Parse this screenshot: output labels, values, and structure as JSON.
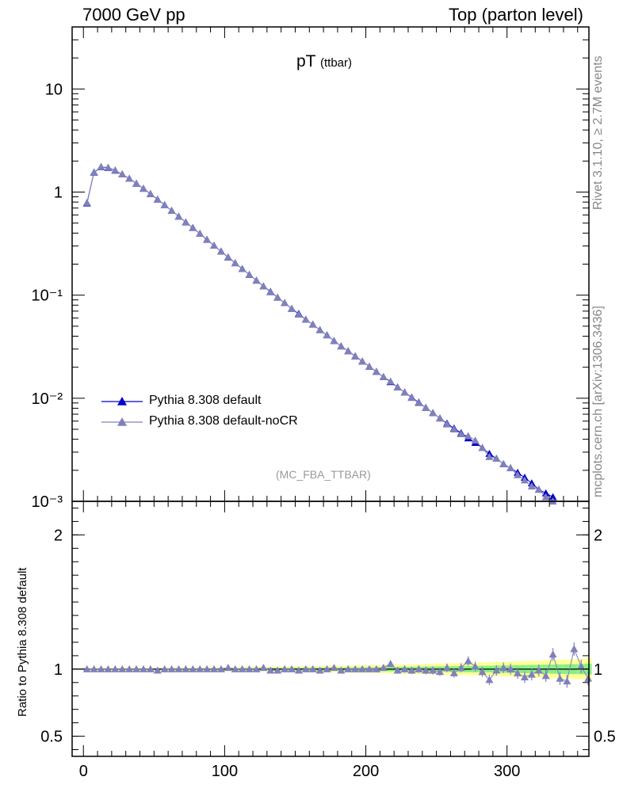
{
  "header": {
    "left": "7000 GeV pp",
    "right": "Top (parton level)"
  },
  "side": {
    "rivet": "Rivet 3.1.10, ≥ 2.7M events",
    "mcplots": "mcplots.cern.ch [arXiv:1306.3436]"
  },
  "title": {
    "main": "pT",
    "sub": "(ttbar)"
  },
  "analysis": "(MC_FBA_TTBAR)",
  "ratio_ylabel": "Ratio to Pythia 8.308 default",
  "legend": [
    {
      "label": "Pythia 8.308 default",
      "color": "#0000cc"
    },
    {
      "label": "Pythia 8.308 default-noCR",
      "color": "#8080bb"
    }
  ],
  "chart_data": {
    "type": "line",
    "x_ticks": [
      "0",
      "100",
      "200",
      "300"
    ],
    "xlim": [
      -8,
      358
    ],
    "main": {
      "yscale": "log",
      "ylim": [
        0.001,
        40
      ],
      "y_ticks": [
        "10",
        "1",
        "10⁻¹",
        "10⁻²",
        "10⁻³"
      ],
      "x": [
        2.5,
        7.5,
        12.5,
        17.5,
        22.5,
        27.5,
        32.5,
        37.5,
        42.5,
        47.5,
        52.5,
        57.5,
        62.5,
        67.5,
        72.5,
        77.5,
        82.5,
        87.5,
        92.5,
        97.5,
        102.5,
        107.5,
        112.5,
        117.5,
        122.5,
        127.5,
        132.5,
        137.5,
        142.5,
        147.5,
        152.5,
        157.5,
        162.5,
        167.5,
        172.5,
        177.5,
        182.5,
        187.5,
        192.5,
        197.5,
        202.5,
        207.5,
        212.5,
        217.5,
        222.5,
        227.5,
        232.5,
        237.5,
        242.5,
        247.5,
        252.5,
        257.5,
        262.5,
        267.5,
        272.5,
        277.5,
        282.5,
        287.5,
        292.5,
        297.5,
        302.5,
        307.5,
        312.5,
        317.5,
        322.5,
        327.5,
        332.5,
        337.5,
        342.5,
        347.5,
        352.5,
        357.5
      ],
      "series": [
        {
          "name": "Pythia 8.308 default",
          "values": [
            0.78,
            1.55,
            1.75,
            1.72,
            1.62,
            1.49,
            1.35,
            1.21,
            1.08,
            0.96,
            0.85,
            0.75,
            0.66,
            0.58,
            0.51,
            0.45,
            0.395,
            0.345,
            0.303,
            0.266,
            0.233,
            0.205,
            0.18,
            0.158,
            0.139,
            0.122,
            0.108,
            0.095,
            0.084,
            0.074,
            0.066,
            0.058,
            0.052,
            0.046,
            0.041,
            0.036,
            0.032,
            0.0287,
            0.0256,
            0.0228,
            0.0203,
            0.0181,
            0.0161,
            0.0144,
            0.0128,
            0.0114,
            0.0102,
            0.0091,
            0.0081,
            0.0072,
            0.0064,
            0.0057,
            0.0051,
            0.0046,
            0.0041,
            0.0037,
            0.0033,
            0.0029,
            0.0026,
            0.0023,
            0.0021,
            0.0019,
            0.0017,
            0.0015,
            0.0013,
            0.0012,
            0.0011,
            0.00098,
            0.00088,
            0.00079,
            0.00071,
            0.00064
          ]
        },
        {
          "name": "Pythia 8.308 default-noCR",
          "values": [
            0.79,
            1.56,
            1.76,
            1.73,
            1.63,
            1.49,
            1.35,
            1.21,
            1.08,
            0.96,
            0.85,
            0.75,
            0.66,
            0.58,
            0.51,
            0.45,
            0.395,
            0.346,
            0.303,
            0.266,
            0.234,
            0.205,
            0.18,
            0.158,
            0.139,
            0.122,
            0.107,
            0.095,
            0.084,
            0.074,
            0.065,
            0.058,
            0.052,
            0.046,
            0.041,
            0.036,
            0.032,
            0.0287,
            0.0255,
            0.0228,
            0.0203,
            0.0181,
            0.0161,
            0.0146,
            0.0128,
            0.0114,
            0.0101,
            0.009,
            0.0081,
            0.0072,
            0.0064,
            0.0056,
            0.005,
            0.0045,
            0.0043,
            0.0039,
            0.0033,
            0.0027,
            0.0026,
            0.0023,
            0.0021,
            0.0018,
            0.0016,
            0.0014,
            0.0013,
            0.0011,
            0.001,
            0.00088,
            0.00077,
            0.00079,
            0.00072,
            0.00059
          ]
        }
      ]
    },
    "ratio": {
      "ylim": [
        0.35,
        2.25
      ],
      "y_ticks": [
        "2",
        "1",
        "0.5"
      ],
      "x": [
        2.5,
        7.5,
        12.5,
        17.5,
        22.5,
        27.5,
        32.5,
        37.5,
        42.5,
        47.5,
        52.5,
        57.5,
        62.5,
        67.5,
        72.5,
        77.5,
        82.5,
        87.5,
        92.5,
        97.5,
        102.5,
        107.5,
        112.5,
        117.5,
        122.5,
        127.5,
        132.5,
        137.5,
        142.5,
        147.5,
        152.5,
        157.5,
        162.5,
        167.5,
        172.5,
        177.5,
        182.5,
        187.5,
        192.5,
        197.5,
        202.5,
        207.5,
        212.5,
        217.5,
        222.5,
        227.5,
        232.5,
        237.5,
        242.5,
        247.5,
        252.5,
        257.5,
        262.5,
        267.5,
        272.5,
        277.5,
        282.5,
        287.5,
        292.5,
        297.5,
        302.5,
        307.5,
        312.5,
        317.5,
        322.5,
        327.5,
        332.5,
        337.5,
        342.5,
        347.5,
        352.5,
        357.5
      ],
      "values": [
        1.0,
        1.0,
        1.0,
        1.0,
        1.0,
        1.0,
        1.0,
        1.0,
        1.0,
        1.0,
        0.99,
        1.0,
        1.0,
        1.0,
        1.0,
        1.0,
        1.0,
        1.0,
        1.0,
        1.0,
        1.01,
        1.0,
        1.0,
        1.0,
        1.0,
        1.01,
        0.99,
        0.99,
        1.0,
        1.0,
        0.99,
        1.0,
        1.0,
        0.99,
        1.0,
        1.01,
        0.99,
        1.0,
        1.0,
        1.0,
        1.0,
        1.0,
        1.01,
        1.04,
        0.99,
        1.0,
        0.99,
        1.0,
        0.99,
        0.99,
        0.98,
        1.01,
        0.97,
        1.01,
        1.06,
        1.02,
        0.98,
        0.92,
        0.99,
        1.01,
        1.0,
        0.97,
        0.94,
        0.96,
        0.99,
        0.95,
        1.11,
        0.93,
        0.91,
        1.15,
        1.02,
        0.93
      ],
      "errors": [
        0.005,
        0.005,
        0.005,
        0.005,
        0.005,
        0.005,
        0.005,
        0.005,
        0.005,
        0.005,
        0.006,
        0.006,
        0.006,
        0.007,
        0.007,
        0.007,
        0.008,
        0.008,
        0.008,
        0.009,
        0.009,
        0.01,
        0.01,
        0.01,
        0.011,
        0.011,
        0.012,
        0.012,
        0.013,
        0.013,
        0.014,
        0.014,
        0.015,
        0.015,
        0.016,
        0.017,
        0.017,
        0.018,
        0.019,
        0.02,
        0.021,
        0.022,
        0.023,
        0.024,
        0.025,
        0.026,
        0.027,
        0.028,
        0.029,
        0.03,
        0.031,
        0.032,
        0.033,
        0.034,
        0.035,
        0.036,
        0.037,
        0.038,
        0.039,
        0.04,
        0.041,
        0.042,
        0.043,
        0.044,
        0.045,
        0.046,
        0.047,
        0.048,
        0.049,
        0.05,
        0.051,
        0.052
      ],
      "band_green": [
        0.005,
        0.005,
        0.005,
        0.005,
        0.005,
        0.005,
        0.005,
        0.005,
        0.005,
        0.005,
        0.005,
        0.005,
        0.005,
        0.006,
        0.006,
        0.006,
        0.006,
        0.006,
        0.007,
        0.007,
        0.007,
        0.007,
        0.008,
        0.008,
        0.008,
        0.008,
        0.009,
        0.009,
        0.009,
        0.01,
        0.01,
        0.01,
        0.011,
        0.011,
        0.012,
        0.012,
        0.012,
        0.013,
        0.013,
        0.014,
        0.014,
        0.015,
        0.015,
        0.016,
        0.016,
        0.017,
        0.018,
        0.018,
        0.019,
        0.02,
        0.02,
        0.021,
        0.022,
        0.022,
        0.023,
        0.024,
        0.025,
        0.025,
        0.026,
        0.027,
        0.028,
        0.029,
        0.03,
        0.031,
        0.032,
        0.033,
        0.034,
        0.035,
        0.036,
        0.037,
        0.038,
        0.04
      ],
      "band_yellow": [
        0.01,
        0.01,
        0.01,
        0.01,
        0.01,
        0.01,
        0.01,
        0.01,
        0.01,
        0.01,
        0.011,
        0.011,
        0.011,
        0.012,
        0.012,
        0.012,
        0.013,
        0.013,
        0.014,
        0.014,
        0.015,
        0.015,
        0.016,
        0.016,
        0.017,
        0.017,
        0.018,
        0.019,
        0.019,
        0.02,
        0.021,
        0.021,
        0.022,
        0.023,
        0.024,
        0.025,
        0.025,
        0.026,
        0.027,
        0.028,
        0.029,
        0.03,
        0.031,
        0.032,
        0.033,
        0.034,
        0.036,
        0.037,
        0.038,
        0.04,
        0.041,
        0.042,
        0.044,
        0.045,
        0.047,
        0.048,
        0.05,
        0.051,
        0.053,
        0.055,
        0.056,
        0.058,
        0.06,
        0.062,
        0.064,
        0.066,
        0.068,
        0.07,
        0.072,
        0.074,
        0.076,
        0.08
      ]
    }
  }
}
